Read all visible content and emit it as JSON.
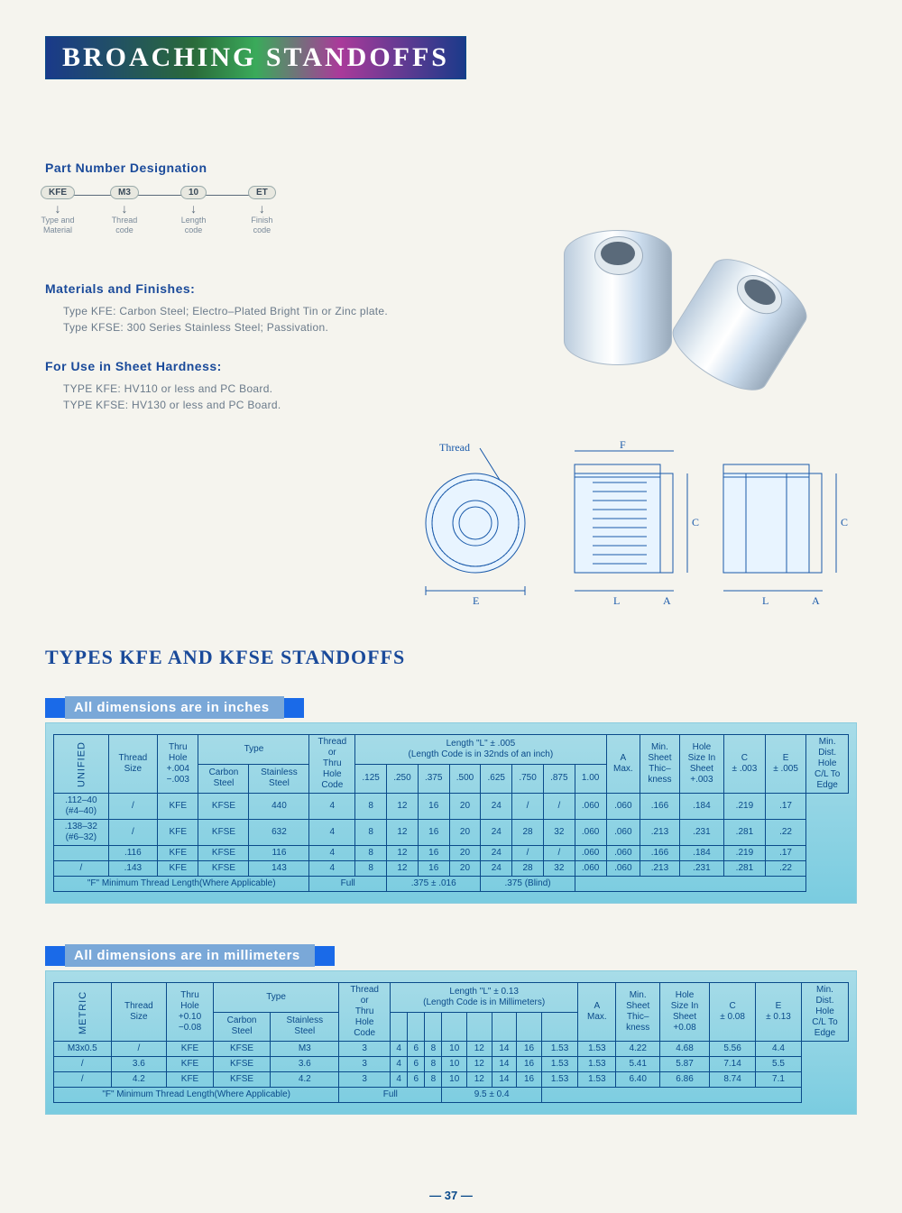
{
  "page": {
    "title": "BROACHING STANDOFFS",
    "subtitle": "TYPES KFE AND KFSE STANDOFFS",
    "page_number": "— 37 —"
  },
  "part_designation": {
    "heading": "Part Number Designation",
    "nodes": [
      {
        "code": "KFE",
        "label": "Type and\nMaterial"
      },
      {
        "code": "M3",
        "label": "Thread\ncode"
      },
      {
        "code": "10",
        "label": "Length\ncode"
      },
      {
        "code": "ET",
        "label": "Finish\ncode"
      }
    ]
  },
  "materials": {
    "heading": "Materials and Finishes:",
    "lines": [
      "Type KFE:  Carbon Steel;  Electro–Plated Bright Tin or Zinc plate.",
      "Type KFSE:  300 Series Stainless Steel; Passivation."
    ]
  },
  "hardness": {
    "heading": "For Use in Sheet Hardness:",
    "lines": [
      "TYPE KFE:  HV110 or less and PC Board.",
      "TYPE KFSE:  HV130 or less and PC Board."
    ]
  },
  "drawing_labels": {
    "thread": "Thread",
    "E": "E",
    "F": "F",
    "L": "L",
    "A": "A",
    "C": "C"
  },
  "table_unified": {
    "banner": "All dimensions are in inches",
    "vlabel": "UNIFIED",
    "headers": {
      "thread_size": "Thread\nSize",
      "thru_hole": "Thru\nHole\n+.004\n−.003",
      "type": "Type",
      "carbon": "Carbon\nSteel",
      "stainless": "Stainless\nSteel",
      "thread_code": "Thread\nor\nThru\nHole\nCode",
      "length_title": "Length \"L\"  ± .005\n(Length Code is in 32nds of an inch)",
      "len_cols": [
        ".125",
        ".250",
        ".375",
        ".500",
        ".625",
        ".750",
        ".875",
        "1.00"
      ],
      "a_max": "A\nMax.",
      "min_sheet": "Min.\nSheet\nThic–\nkness",
      "hole_size": "Hole\nSize In\nSheet\n+.003",
      "c": "C\n± .003",
      "e": "E\n± .005",
      "min_dist": "Min.\nDist.\nHole\nC/L To\nEdge"
    },
    "rows": [
      {
        "thread": ".112–40\n(#4–40)",
        "thru": "/",
        "cs": "KFE",
        "ss": "KFSE",
        "code": "440",
        "len": [
          "4",
          "8",
          "12",
          "16",
          "20",
          "24",
          "/",
          "/"
        ],
        "a": ".060",
        "ms": ".060",
        "hs": ".166",
        "c": ".184",
        "e": ".219",
        "md": ".17"
      },
      {
        "thread": ".138–32\n(#6–32)",
        "thru": "/",
        "cs": "KFE",
        "ss": "KFSE",
        "code": "632",
        "len": [
          "4",
          "8",
          "12",
          "16",
          "20",
          "24",
          "28",
          "32"
        ],
        "a": ".060",
        "ms": ".060",
        "hs": ".213",
        "c": ".231",
        "e": ".281",
        "md": ".22"
      },
      {
        "thread": "",
        "thru": ".116",
        "cs": "KFE",
        "ss": "KFSE",
        "code": "116",
        "len": [
          "4",
          "8",
          "12",
          "16",
          "20",
          "24",
          "/",
          "/"
        ],
        "a": ".060",
        "ms": ".060",
        "hs": ".166",
        "c": ".184",
        "e": ".219",
        "md": ".17"
      },
      {
        "thread": "/",
        "thru": ".143",
        "cs": "KFE",
        "ss": "KFSE",
        "code": "143",
        "len": [
          "4",
          "8",
          "12",
          "16",
          "20",
          "24",
          "28",
          "32"
        ],
        "a": ".060",
        "ms": ".060",
        "hs": ".213",
        "c": ".231",
        "e": ".281",
        "md": ".22"
      }
    ],
    "footer": {
      "label": "\"F\" Minimum Thread Length(Where Applicable)",
      "c1": "Full",
      "c2": ".375 ± .016",
      "c3": ".375 (Blind)"
    }
  },
  "table_metric": {
    "banner": "All dimensions are in millimeters",
    "vlabel": "METRIC",
    "headers": {
      "thread_size": "Thread\nSize",
      "thru_hole": "Thru\nHole\n+0.10\n−0.08",
      "type": "Type",
      "carbon": "Carbon\nSteel",
      "stainless": "Stainless\nSteel",
      "thread_code": "Thread\nor\nThru\nHole\nCode",
      "length_title": "Length \"L\"  ± 0.13\n(Length Code is in Millimeters)",
      "len_cols": [
        "",
        "",
        "",
        "",
        "",
        "",
        "",
        ""
      ],
      "a_max": "A\nMax.",
      "min_sheet": "Min.\nSheet\nThic–\nkness",
      "hole_size": "Hole\nSize In\nSheet\n+0.08",
      "c": "C\n± 0.08",
      "e": "E\n± 0.13",
      "min_dist": "Min.\nDist.\nHole\nC/L To\nEdge"
    },
    "rows": [
      {
        "thread": "M3x0.5",
        "thru": "/",
        "cs": "KFE",
        "ss": "KFSE",
        "code": "M3",
        "len": [
          "3",
          "4",
          "6",
          "8",
          "10",
          "12",
          "14",
          "16"
        ],
        "a": "1.53",
        "ms": "1.53",
        "hs": "4.22",
        "c": "4.68",
        "e": "5.56",
        "md": "4.4"
      },
      {
        "thread": "/",
        "thru": "3.6",
        "cs": "KFE",
        "ss": "KFSE",
        "code": "3.6",
        "len": [
          "3",
          "4",
          "6",
          "8",
          "10",
          "12",
          "14",
          "16"
        ],
        "a": "1.53",
        "ms": "1.53",
        "hs": "5.41",
        "c": "5.87",
        "e": "7.14",
        "md": "5.5"
      },
      {
        "thread": "/",
        "thru": "4.2",
        "cs": "KFE",
        "ss": "KFSE",
        "code": "4.2",
        "len": [
          "3",
          "4",
          "6",
          "8",
          "10",
          "12",
          "14",
          "16"
        ],
        "a": "1.53",
        "ms": "1.53",
        "hs": "6.40",
        "c": "6.86",
        "e": "8.74",
        "md": "7.1"
      }
    ],
    "footer": {
      "label": "\"F\" Minimum Thread Length(Where Applicable)",
      "c1": "Full",
      "c2": "9.5 ± 0.4"
    }
  },
  "colors": {
    "text_main": "#0a4a8a",
    "bg_page": "#f5f4ee",
    "table_bg": "#a8dce8",
    "bar_bg": "#7aa8d8",
    "sq_accent": "#1a6ae8"
  }
}
